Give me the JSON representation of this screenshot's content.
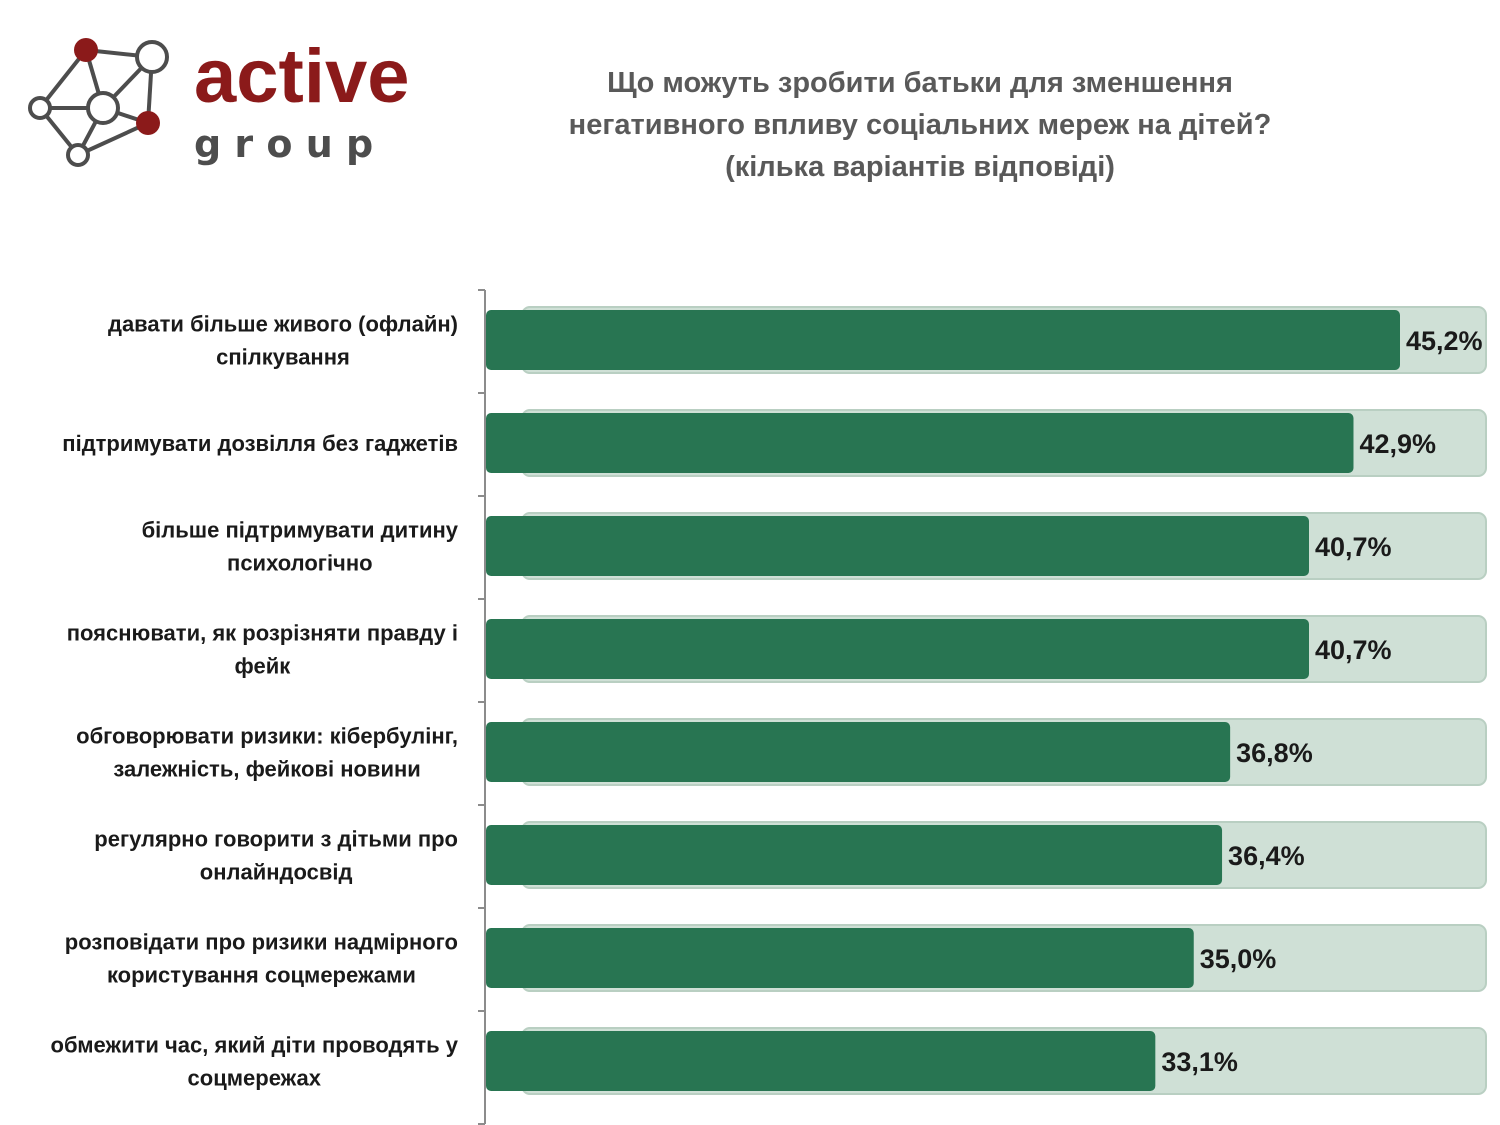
{
  "logo": {
    "word_top": "active",
    "word_bottom": "g r o u p",
    "icon": "network-nodes-icon",
    "brand_red": "#8b1a1a",
    "brand_gray": "#4d4d4d"
  },
  "title": {
    "line1": "Що можуть зробити батьки для зменшення",
    "line2": "негативного впливу соціальних мереж на дітей?",
    "line3": "(кілька варіантів відповіді)"
  },
  "colors": {
    "bar": "#287552",
    "track": "#cfe0d6",
    "track_border": "#b9cfc2",
    "axis": "#8c8c8c"
  },
  "chart_data": {
    "type": "bar",
    "orientation": "horizontal",
    "title": "Що можуть зробити батьки для зменшення негативного впливу соціальних мереж на дітей? (кілька варіантів відповіді)",
    "categories": [
      [
        "давати більше живого (офлайн)",
        "спілкування"
      ],
      [
        "підтримувати дозвілля без гаджетів"
      ],
      [
        "більше підтримувати дитину",
        "психологічно"
      ],
      [
        "пояснювати, як розрізняти правду і",
        "фейк"
      ],
      [
        "обговорювати ризики: кібербулінг,",
        "залежність, фейкові новини"
      ],
      [
        "регулярно говорити з дітьми про",
        "онлайндосвід"
      ],
      [
        "розповідати про ризики надмірного",
        "користування соцмережами"
      ],
      [
        "обмежити час, який діти проводять у",
        "соцмережах"
      ]
    ],
    "values": [
      45.2,
      42.9,
      40.7,
      40.7,
      36.8,
      36.4,
      35.0,
      33.1
    ],
    "value_labels": [
      "45,2%",
      "42,9%",
      "40,7%",
      "40,7%",
      "36,8%",
      "36,4%",
      "35,0%",
      "33,1%"
    ],
    "xlim": [
      0,
      45.2
    ],
    "grid": false,
    "legend": "none"
  }
}
